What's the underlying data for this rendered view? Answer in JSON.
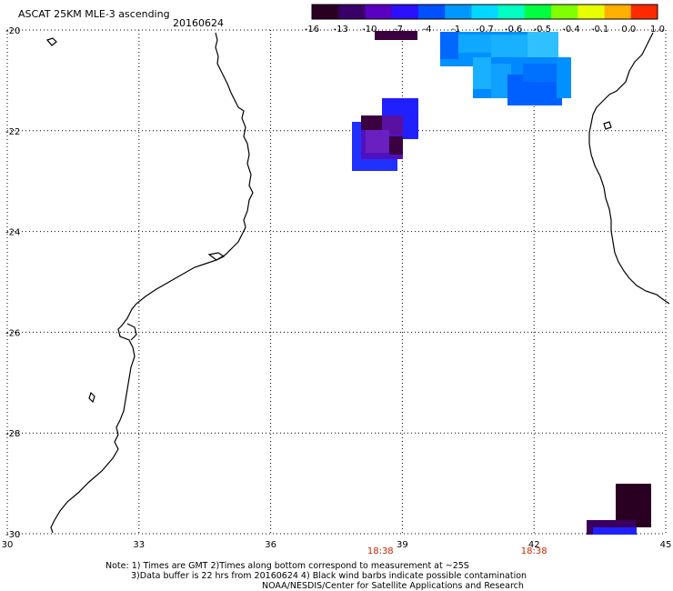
{
  "title": "ASCAT 25KM MLE-3 ascending",
  "date": "20160624",
  "colorbar": {
    "labels": [
      "-16",
      "-13",
      "-10",
      "-7",
      "-4",
      "-1",
      "-0.7",
      "-0.6",
      "-0.5",
      "-0.4",
      "-0.1",
      "0.0",
      "1.0"
    ],
    "colors": [
      "#2a0022",
      "#3a006a",
      "#5a00c0",
      "#2a10ff",
      "#0050ff",
      "#0098ff",
      "#00d8ff",
      "#00ffc0",
      "#00ff40",
      "#80ff00",
      "#e8ff00",
      "#ffb000",
      "#ff2a00"
    ]
  },
  "axes": {
    "x_ticks": [
      "30",
      "33",
      "36",
      "39",
      "42",
      "45"
    ],
    "y_ticks": [
      "-20",
      "-22",
      "-24",
      "-26",
      "-28",
      "-30"
    ]
  },
  "times": [
    {
      "lon": 38.5,
      "label": "18:38"
    },
    {
      "lon": 42.0,
      "label": "18:38"
    }
  ],
  "notes": [
    "Note: 1) Times are GMT 2)Times along bottom correspond to measurement at ~25S",
    "3)Data buffer is 22 hrs from 20160624 4) Black wind barbs indicate possible contamination",
    "NOAA/NESDIS/Center for Satellite Applications and Research"
  ]
}
